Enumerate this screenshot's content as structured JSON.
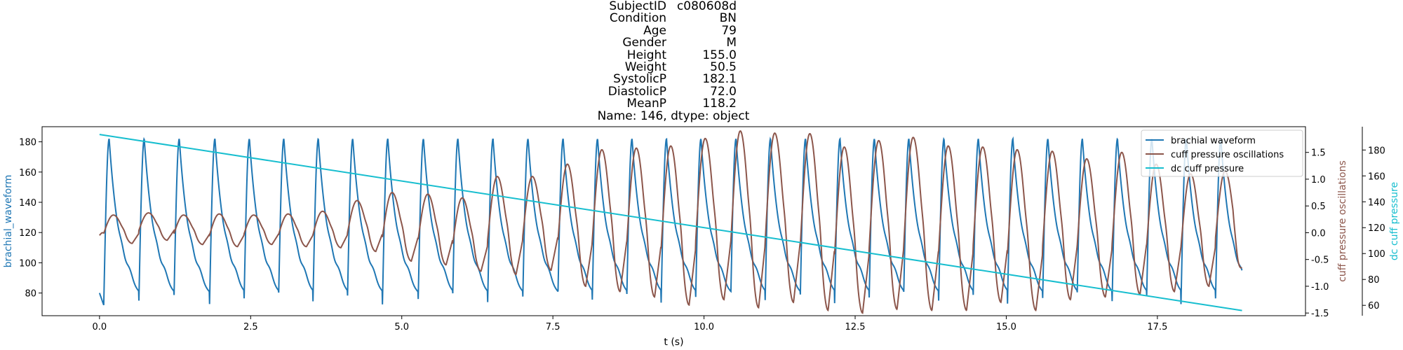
{
  "title": {
    "rows": [
      {
        "key": "SubjectID",
        "value": "c080608d"
      },
      {
        "key": "Condition",
        "value": "BN"
      },
      {
        "key": "Age",
        "value": "79"
      },
      {
        "key": "Gender",
        "value": "M"
      },
      {
        "key": "Height",
        "value": "155.0"
      },
      {
        "key": "Weight",
        "value": "50.5"
      },
      {
        "key": "SystolicP",
        "value": "182.1"
      },
      {
        "key": "DiastolicP",
        "value": "72.0"
      },
      {
        "key": "MeanP",
        "value": "118.2"
      }
    ],
    "footer": "Name: 146, dtype: object"
  },
  "chart_data": {
    "type": "line",
    "xlabel": "t (s)",
    "xlim": [
      -0.95,
      19.95
    ],
    "xticks": [
      "0.0",
      "2.5",
      "5.0",
      "7.5",
      "10.0",
      "12.5",
      "15.0",
      "17.5"
    ],
    "grid": false,
    "legend_position": "top-right",
    "legend": [
      "brachial waveform",
      "cuff pressure oscillations",
      "dc cuff pressure"
    ],
    "colors": {
      "brachial": "#1f77b4",
      "oscillations": "#8c564b",
      "dc": "#17becf"
    },
    "axes": {
      "left": {
        "label": "brachial_waveform",
        "ylim": [
          65,
          190
        ],
        "ticks": [
          "80",
          "100",
          "120",
          "140",
          "160",
          "180"
        ]
      },
      "right1": {
        "label": "cuff pressure oscillations",
        "ylim": [
          -1.55,
          1.98
        ],
        "ticks": [
          "-1.5",
          "-1.0",
          "-0.5",
          "0.0",
          "0.5",
          "1.0",
          "1.5"
        ]
      },
      "right2": {
        "label": "dc cuff pressure",
        "ylim": [
          52,
          198
        ],
        "ticks": [
          "60",
          "80",
          "100",
          "120",
          "140",
          "160",
          "180"
        ]
      }
    },
    "series": [
      {
        "name": "brachial waveform",
        "axis": "left",
        "t_range": [
          0,
          18.9
        ],
        "beat_onsets": [
          0.07,
          0.65,
          1.23,
          1.82,
          2.39,
          2.96,
          3.53,
          4.1,
          4.68,
          5.27,
          5.84,
          6.42,
          7.0,
          7.58,
          8.15,
          8.72,
          9.29,
          9.86,
          10.44,
          11.01,
          11.59,
          12.16,
          12.73,
          13.3,
          13.88,
          14.45,
          15.02,
          15.6,
          16.17,
          16.75,
          17.32,
          17.89,
          18.46
        ],
        "systolic": 182,
        "diastolic": 72,
        "start_value": 80
      },
      {
        "name": "cuff pressure oscillations",
        "axis": "right1",
        "t_range": [
          0,
          18.9
        ],
        "start_value": -0.05,
        "end_value": -0.65,
        "beat_peaks": [
          0.92,
          0.95,
          0.95,
          1.0,
          1.02,
          1.06,
          1.1,
          0.72,
          0.97,
          1.14,
          1.16,
          1.24,
          1.5,
          1.76,
          1.78,
          1.82,
          1.58,
          1.72,
          1.75,
          1.88,
          1.91,
          1.79,
          1.82,
          1.85,
          1.62,
          1.62,
          1.65,
          1.6,
          1.56,
          1.46,
          1.42,
          1.3,
          1.28
        ],
        "beat_troughs": [
          -0.2,
          -0.14,
          -0.22,
          -0.26,
          -0.22,
          -0.26,
          -0.28,
          -0.35,
          -0.53,
          -0.6,
          -0.72,
          -0.78,
          -0.7,
          -1.0,
          -1.1,
          -1.2,
          -1.35,
          -1.25,
          -1.4,
          -1.3,
          -1.45,
          -1.5,
          -1.43,
          -1.45,
          -1.45,
          -1.3,
          -1.45,
          -1.25,
          -1.2,
          -1.15,
          -1.1,
          -1.0,
          -0.8
        ],
        "peaks_in_data": [
          0.33,
          0.37,
          0.33,
          0.35,
          0.33,
          0.35,
          0.4,
          0.6,
          0.75,
          0.72,
          0.65,
          1.05,
          1.05,
          1.28,
          1.55,
          1.58,
          1.62,
          1.76,
          1.9,
          1.86,
          1.85,
          1.6,
          1.72,
          1.78,
          1.62,
          1.6,
          1.55,
          1.52,
          1.38,
          1.5,
          1.28,
          1.1,
          1.15
        ]
      },
      {
        "name": "dc cuff pressure",
        "axis": "right2",
        "t_range": [
          0,
          18.9
        ],
        "values": [
          192,
          56
        ]
      }
    ]
  }
}
